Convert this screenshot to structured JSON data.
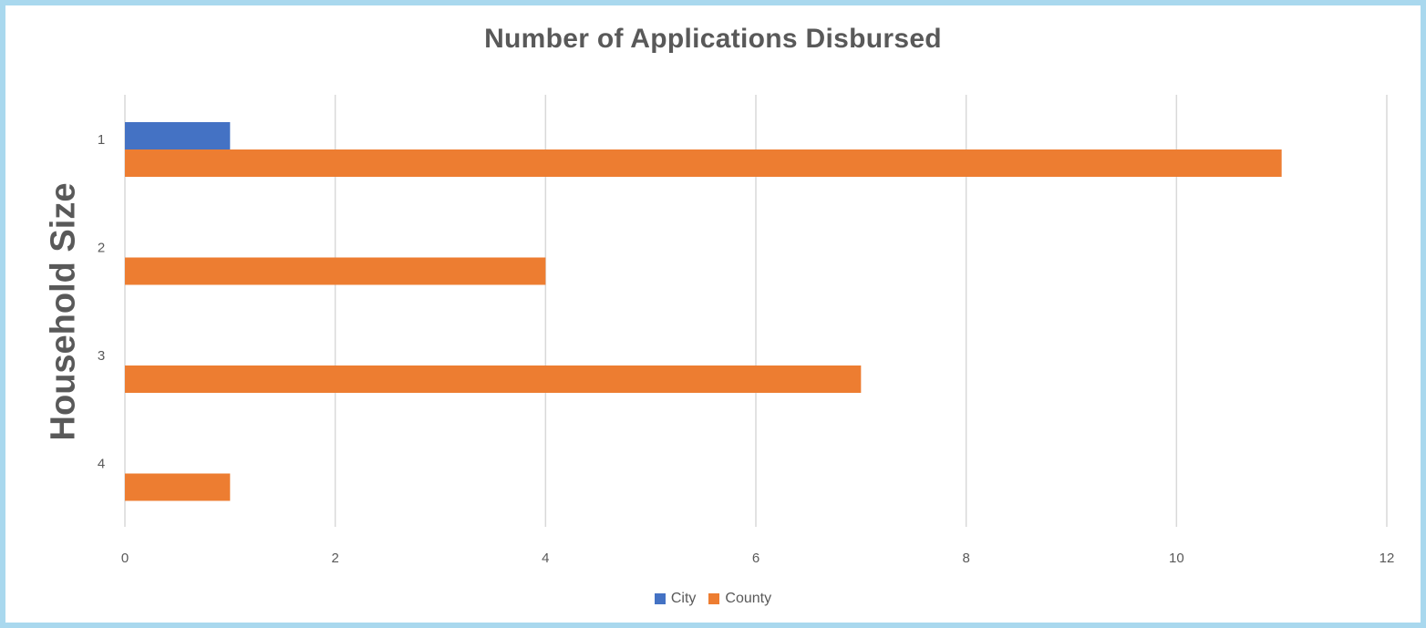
{
  "chart_data": {
    "type": "bar",
    "orientation": "horizontal",
    "title": "Number of Applications Disbursed",
    "ylabel": "Household Size",
    "xlabel": "",
    "categories": [
      "1",
      "2",
      "3",
      "4"
    ],
    "series": [
      {
        "name": "City",
        "values": [
          1,
          0,
          0,
          0
        ],
        "color": "#4472c4"
      },
      {
        "name": "County",
        "values": [
          11,
          4,
          7,
          1
        ],
        "color": "#ed7d31"
      }
    ],
    "xlim": [
      0,
      12
    ],
    "xticks": [
      "0",
      "2",
      "4",
      "6",
      "8",
      "10",
      "12"
    ],
    "grid": "vertical",
    "legend_position": "bottom"
  }
}
